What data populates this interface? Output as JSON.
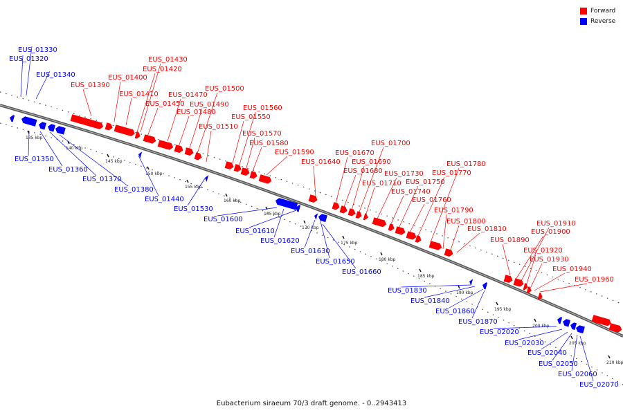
{
  "caption": "Eubacterium siraeum 70/3 draft genome. - 0..2943413",
  "legend": [
    {
      "label": "Forward",
      "color": "#ff0000"
    },
    {
      "label": "Reverse",
      "color": "#0000ff"
    }
  ],
  "ticks": [
    "135 kbp",
    "140 kbp",
    "145 kbp",
    "150 kbp",
    "155 kbp",
    "160 kbp",
    "165 kbp",
    "170 kbp",
    "175 kbp",
    "180 kbp",
    "185 kbp",
    "190 kbp",
    "195 kbp",
    "200 kbp",
    "205 kbp",
    "210 kbp"
  ],
  "forward_labels": [
    "EUS_01390",
    "EUS_01400",
    "EUS_01410",
    "EUS_01420",
    "EUS_01430",
    "EUS_01450",
    "EUS_01470",
    "EUS_01480",
    "EUS_01490",
    "EUS_01500",
    "EUS_01510",
    "EUS_01550",
    "EUS_01560",
    "EUS_01570",
    "EUS_01580",
    "EUS_01590",
    "EUS_01640",
    "EUS_01670",
    "EUS_01680",
    "EUS_01690",
    "EUS_01700",
    "EUS_01710",
    "EUS_01730",
    "EUS_01740",
    "EUS_01750",
    "EUS_01760",
    "EUS_01770",
    "EUS_01780",
    "EUS_01790",
    "EUS_01800",
    "EUS_01810",
    "EUS_01890",
    "EUS_01900",
    "EUS_01910",
    "EUS_01920",
    "EUS_01930",
    "EUS_01940",
    "EUS_01960"
  ],
  "reverse_labels": [
    "EUS_01330",
    "EUS_01320",
    "EUS_01340",
    "EUS_01350",
    "EUS_01360",
    "EUS_01370",
    "EUS_01380",
    "EUS_01440",
    "EUS_01530",
    "EUS_01600",
    "EUS_01610",
    "EUS_01620",
    "EUS_01630",
    "EUS_01650",
    "EUS_01660",
    "EUS_01830",
    "EUS_01840",
    "EUS_01860",
    "EUS_01870",
    "EUS_02020",
    "EUS_02030",
    "EUS_02040",
    "EUS_02050",
    "EUS_02060",
    "EUS_02070"
  ]
}
